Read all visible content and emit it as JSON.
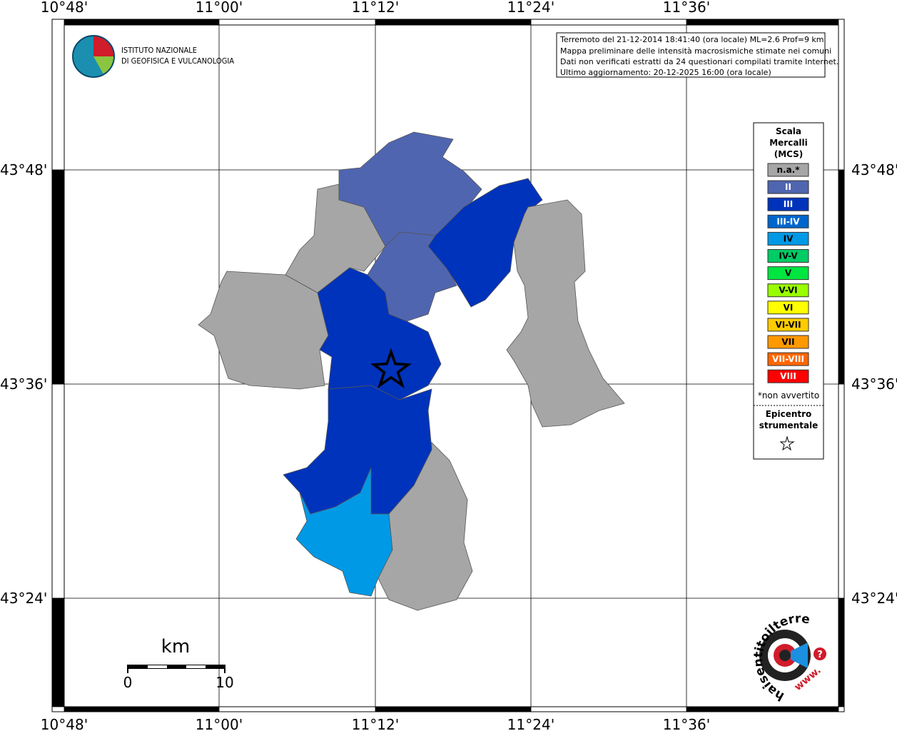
{
  "map": {
    "lon_labels": [
      "10°48'",
      "11°00'",
      "11°12'",
      "11°24'",
      "11°36'"
    ],
    "lat_labels": [
      "43°48'",
      "43°36'",
      "43°24'"
    ],
    "info": [
      "Terremoto del 21-12-2014 18:41:40 (ora locale) ML=2.6 Prof=9 km",
      "Mappa preliminare delle intensità macrosismiche stimate nei comuni",
      "Dati non verificati estratti da 24 questionari compilati tramite Internet.",
      "Ultimo aggiornamento: 20-12-2025 16:00 (ora locale)"
    ],
    "logo": [
      "ISTITUTO NAZIONALE",
      "DI GEOFISICA E VULCANOLOGIA"
    ],
    "legend": {
      "title": [
        "Scala",
        "Mercalli",
        "(MCS)"
      ],
      "items": [
        {
          "label": "n.a.*",
          "color": "#a6a6a6"
        },
        {
          "label": "II",
          "color": "#5065b0"
        },
        {
          "label": "III",
          "color": "#0033bb"
        },
        {
          "label": "III-IV",
          "color": "#0066cc"
        },
        {
          "label": "IV",
          "color": "#0099e6"
        },
        {
          "label": "IV-V",
          "color": "#00cc66"
        },
        {
          "label": "V",
          "color": "#00e640"
        },
        {
          "label": "V-VI",
          "color": "#99ff00"
        },
        {
          "label": "VI",
          "color": "#ffff00"
        },
        {
          "label": "VI-VII",
          "color": "#ffcc00"
        },
        {
          "label": "VII",
          "color": "#ff9900"
        },
        {
          "label": "VII-VIII",
          "color": "#ff6600"
        },
        {
          "label": "VIII",
          "color": "#ff0000"
        }
      ],
      "note": "*non avvertito",
      "epicenter": [
        "Epicentro",
        "strumentale"
      ]
    },
    "scale": {
      "unit": "km",
      "start": "0",
      "end": "10"
    },
    "badge": {
      "ring": "haisentitoilterremoto.it",
      "www": "www.",
      "q": "?"
    }
  }
}
